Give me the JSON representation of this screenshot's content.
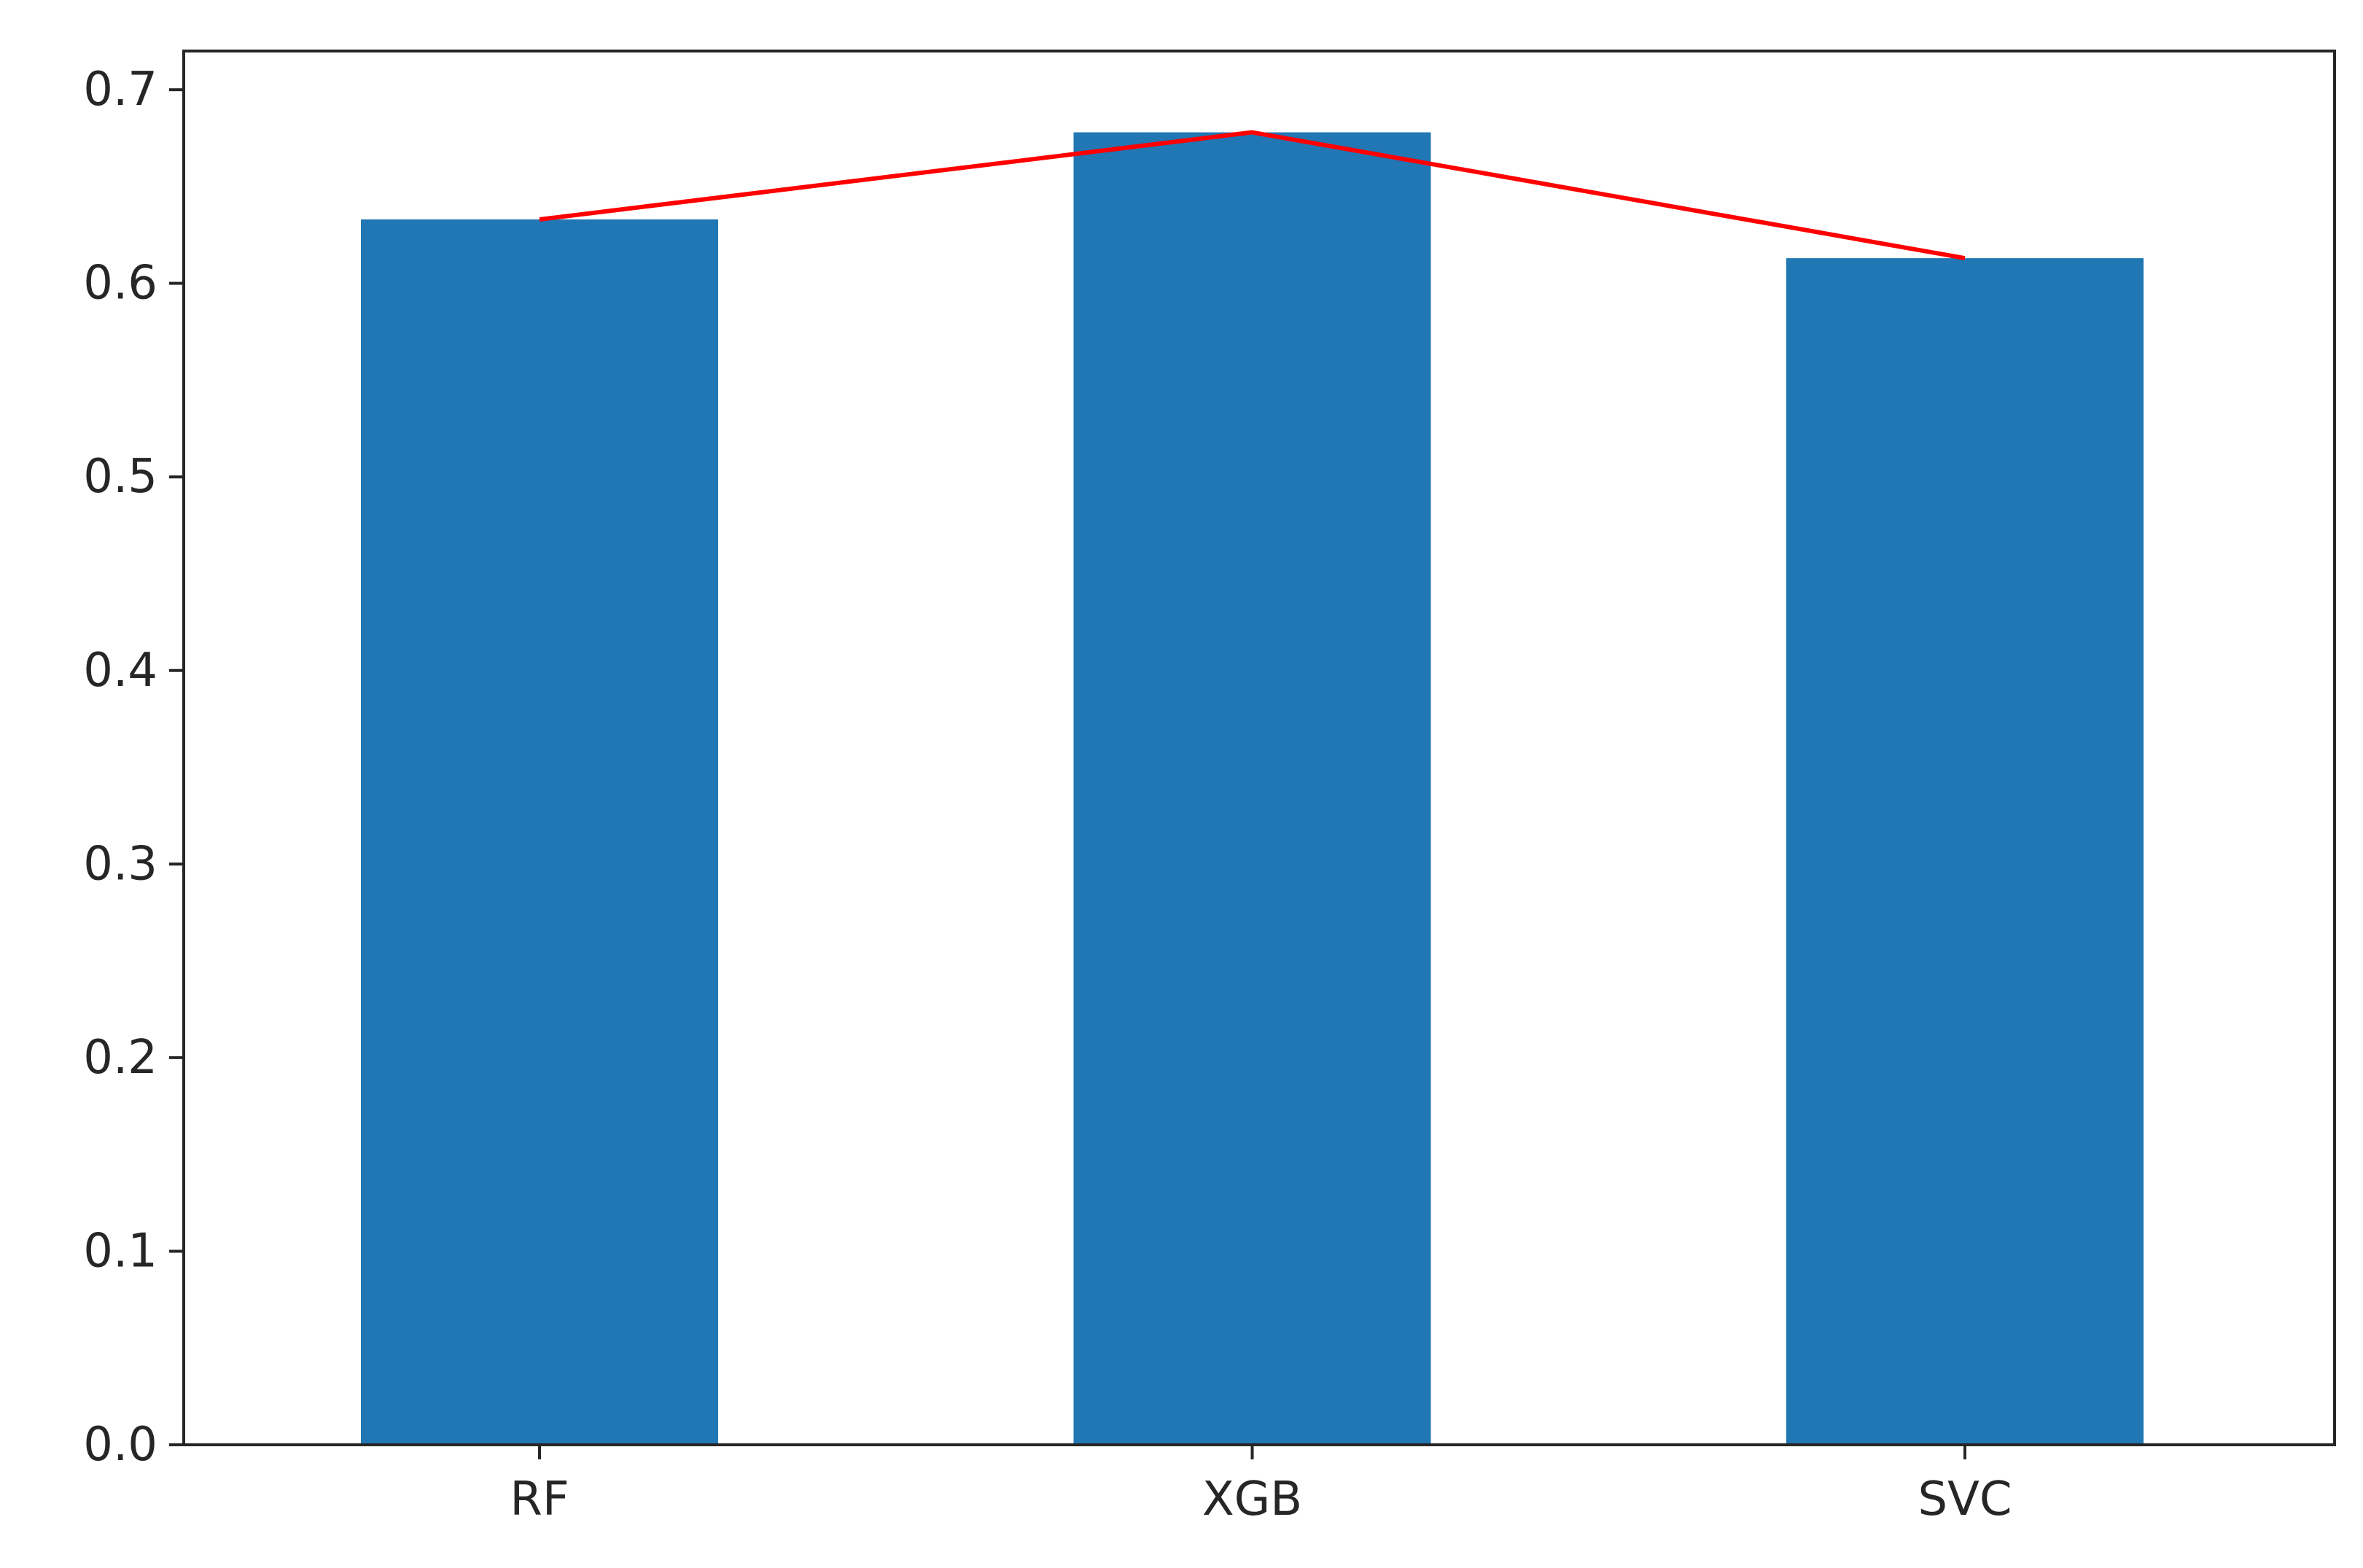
{
  "chart_data": {
    "type": "bar",
    "categories": [
      "RF",
      "XGB",
      "SVC"
    ],
    "values": [
      0.633,
      0.678,
      0.613
    ],
    "line_values": [
      0.633,
      0.678,
      0.613
    ],
    "title": "",
    "xlabel": "",
    "ylabel": "",
    "ylim": [
      0,
      0.7
    ],
    "y_ticks": [
      "0.0",
      "0.1",
      "0.2",
      "0.3",
      "0.4",
      "0.5",
      "0.6",
      "0.7"
    ],
    "grid": false,
    "legend": "none",
    "colors": {
      "bar": "#2077b4",
      "line": "#ff0000"
    }
  }
}
